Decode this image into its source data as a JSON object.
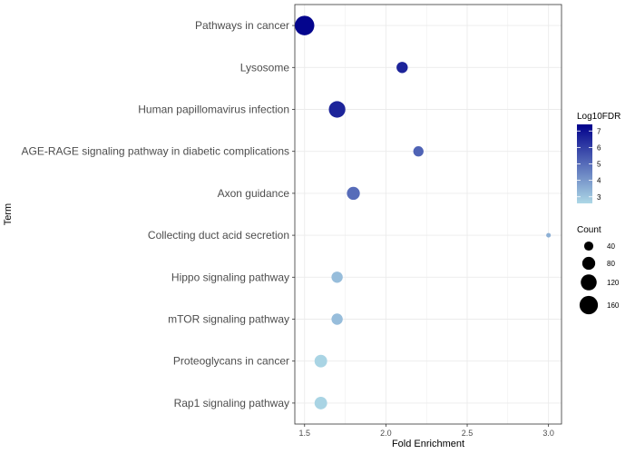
{
  "chart_data": {
    "type": "scatter",
    "xlabel": "Fold Enrichment",
    "ylabel": "Term",
    "xlim": [
      1.44,
      3.08
    ],
    "x_ticks": [
      1.5,
      2.0,
      2.5,
      3.0
    ],
    "x_tick_labels": [
      "1.5",
      "2.0",
      "2.5",
      "3.0"
    ],
    "grid": true,
    "legend_position": "right",
    "terms": [
      {
        "term": "Pathways in cancer",
        "fold_enrichment": 1.5,
        "log10fdr": 7.3,
        "count": 180
      },
      {
        "term": "Lysosome",
        "fold_enrichment": 2.1,
        "log10fdr": 6.6,
        "count": 60
      },
      {
        "term": "Human papillomavirus infection",
        "fold_enrichment": 1.7,
        "log10fdr": 6.6,
        "count": 130
      },
      {
        "term": "AGE-RAGE signaling pathway in diabetic complications",
        "fold_enrichment": 2.2,
        "log10fdr": 5.2,
        "count": 50
      },
      {
        "term": "Axon guidance",
        "fold_enrichment": 1.8,
        "log10fdr": 5.0,
        "count": 80
      },
      {
        "term": "Collecting duct acid secretion",
        "fold_enrichment": 3.0,
        "log10fdr": 3.5,
        "count": 10
      },
      {
        "term": "Hippo signaling pathway",
        "fold_enrichment": 1.7,
        "log10fdr": 3.2,
        "count": 60
      },
      {
        "term": "mTOR signaling pathway",
        "fold_enrichment": 1.7,
        "log10fdr": 3.2,
        "count": 60
      },
      {
        "term": "Proteoglycans in cancer",
        "fold_enrichment": 1.6,
        "log10fdr": 2.7,
        "count": 75
      },
      {
        "term": "Rap1 signaling pathway",
        "fold_enrichment": 1.6,
        "log10fdr": 2.7,
        "count": 75
      }
    ],
    "color_legend": {
      "title": "Log10FDR",
      "ticks": [
        3,
        4,
        5,
        6,
        7
      ],
      "tick_labels": [
        "3",
        "4",
        "5",
        "6",
        "7"
      ],
      "range": [
        2.6,
        7.4
      ],
      "low_color": "#add8e6",
      "high_color": "#00008b"
    },
    "size_legend": {
      "title": "Count",
      "values": [
        40,
        80,
        120,
        160
      ],
      "labels": [
        "40",
        "80",
        "120",
        "160"
      ]
    }
  }
}
